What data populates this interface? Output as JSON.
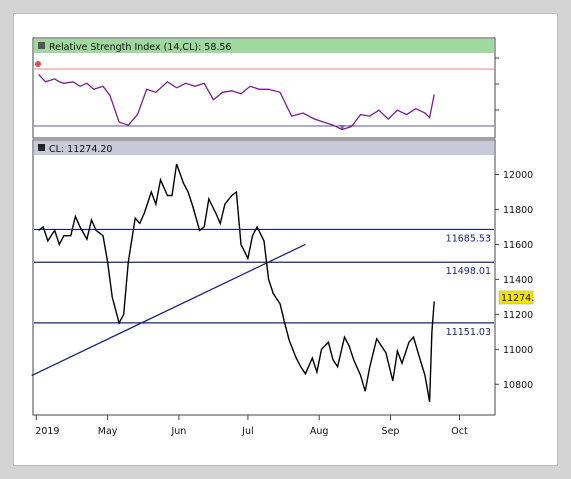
{
  "colors": {
    "frame_border": "#d4d4d4",
    "panel_bg": "#ffffff",
    "rsi_header_bg": "#9fd99f",
    "price_header_bg": "#c9c9d9",
    "rsi_line": "#7a1f8c",
    "rsi_overbought": "#e08a8a",
    "rsi_oversold": "#5a5aa0",
    "rsi_fill": "#6d5fb8",
    "price_line": "#000000",
    "level_line": "#1a237e",
    "trend_line": "#1a237e",
    "last_price_bg": "#f5e400"
  },
  "rsi_panel": {
    "header": "Relative Strength Index (14,CL): 58.56"
  },
  "price_panel": {
    "header": "CL: 11274.20",
    "last_price_tag": "11274."
  },
  "chart_data": [
    {
      "type": "line",
      "title": "Relative Strength Index (14,CL): 58.56",
      "ylim": [
        30,
        85
      ],
      "overbought": 70,
      "oversold": 30,
      "series": [
        {
          "name": "RSI",
          "x": [
            "2019-04-01",
            "2019-04-04",
            "2019-04-08",
            "2019-04-10",
            "2019-04-12",
            "2019-04-16",
            "2019-04-19",
            "2019-04-22",
            "2019-04-25",
            "2019-04-29",
            "2019-05-02",
            "2019-05-06",
            "2019-05-10",
            "2019-05-14",
            "2019-05-18",
            "2019-05-22",
            "2019-05-27",
            "2019-05-31",
            "2019-06-04",
            "2019-06-08",
            "2019-06-12",
            "2019-06-16",
            "2019-06-20",
            "2019-06-24",
            "2019-06-28",
            "2019-07-02",
            "2019-07-06",
            "2019-07-10",
            "2019-07-15",
            "2019-07-20",
            "2019-07-25",
            "2019-07-30",
            "2019-08-03",
            "2019-08-07",
            "2019-08-11",
            "2019-08-15",
            "2019-08-19",
            "2019-08-23",
            "2019-08-27",
            "2019-08-31",
            "2019-09-04",
            "2019-09-08",
            "2019-09-12",
            "2019-09-16",
            "2019-09-18",
            "2019-09-20"
          ],
          "values": [
            72,
            67,
            69,
            67,
            66,
            67,
            64,
            66,
            62,
            64,
            58,
            40,
            38,
            45,
            62,
            60,
            67,
            63,
            66,
            64,
            66,
            55,
            60,
            61,
            59,
            64,
            62,
            62,
            60,
            44,
            46,
            42,
            40,
            38,
            35,
            37,
            45,
            44,
            48,
            42,
            48,
            45,
            49,
            46,
            43,
            58.56
          ]
        }
      ]
    },
    {
      "type": "line",
      "title": "CL: 11274.20",
      "xlabel": "",
      "ylabel": "",
      "x_ticks": [
        "2019",
        "May",
        "Jun",
        "Jul",
        "Aug",
        "Sep",
        "Oct"
      ],
      "y_ticks": [
        12000,
        11800,
        11600,
        11400,
        11200,
        11000,
        10800
      ],
      "ylim": [
        10630,
        12100
      ],
      "horizontal_levels": [
        11685.53,
        11498.01,
        11151.03
      ],
      "trend_line": {
        "from": [
          "2019-03-29",
          10850
        ],
        "to": [
          "2019-07-26",
          11600
        ]
      },
      "series": [
        {
          "name": "CL",
          "x": [
            "2019-04-01",
            "2019-04-03",
            "2019-04-05",
            "2019-04-08",
            "2019-04-10",
            "2019-04-12",
            "2019-04-15",
            "2019-04-17",
            "2019-04-19",
            "2019-04-22",
            "2019-04-24",
            "2019-04-26",
            "2019-04-29",
            "2019-05-01",
            "2019-05-03",
            "2019-05-06",
            "2019-05-08",
            "2019-05-10",
            "2019-05-13",
            "2019-05-15",
            "2019-05-17",
            "2019-05-20",
            "2019-05-22",
            "2019-05-24",
            "2019-05-27",
            "2019-05-29",
            "2019-05-31",
            "2019-06-03",
            "2019-06-05",
            "2019-06-07",
            "2019-06-10",
            "2019-06-12",
            "2019-06-14",
            "2019-06-17",
            "2019-06-19",
            "2019-06-21",
            "2019-06-24",
            "2019-06-26",
            "2019-06-28",
            "2019-07-01",
            "2019-07-03",
            "2019-07-05",
            "2019-07-08",
            "2019-07-10",
            "2019-07-12",
            "2019-07-15",
            "2019-07-17",
            "2019-07-19",
            "2019-07-22",
            "2019-07-24",
            "2019-07-26",
            "2019-07-29",
            "2019-07-31",
            "2019-08-02",
            "2019-08-05",
            "2019-08-07",
            "2019-08-09",
            "2019-08-12",
            "2019-08-14",
            "2019-08-16",
            "2019-08-19",
            "2019-08-21",
            "2019-08-23",
            "2019-08-26",
            "2019-08-28",
            "2019-08-30",
            "2019-09-02",
            "2019-09-04",
            "2019-09-06",
            "2019-09-09",
            "2019-09-11",
            "2019-09-13",
            "2019-09-16",
            "2019-09-18",
            "2019-09-19",
            "2019-09-20"
          ],
          "values": [
            11680,
            11700,
            11620,
            11680,
            11600,
            11650,
            11650,
            11760,
            11700,
            11630,
            11740,
            11680,
            11650,
            11500,
            11300,
            11150,
            11200,
            11500,
            11750,
            11720,
            11780,
            11900,
            11830,
            11970,
            11880,
            11880,
            12060,
            11950,
            11900,
            11820,
            11680,
            11700,
            11860,
            11780,
            11720,
            11830,
            11880,
            11900,
            11600,
            11520,
            11650,
            11700,
            11620,
            11400,
            11320,
            11260,
            11150,
            11050,
            10950,
            10900,
            10860,
            10950,
            10870,
            11000,
            11040,
            10940,
            10900,
            11070,
            11020,
            10940,
            10850,
            10760,
            10900,
            11060,
            11020,
            10980,
            10820,
            10990,
            10920,
            11040,
            11070,
            10980,
            10850,
            10700,
            11100,
            11274.2
          ]
        }
      ]
    }
  ]
}
